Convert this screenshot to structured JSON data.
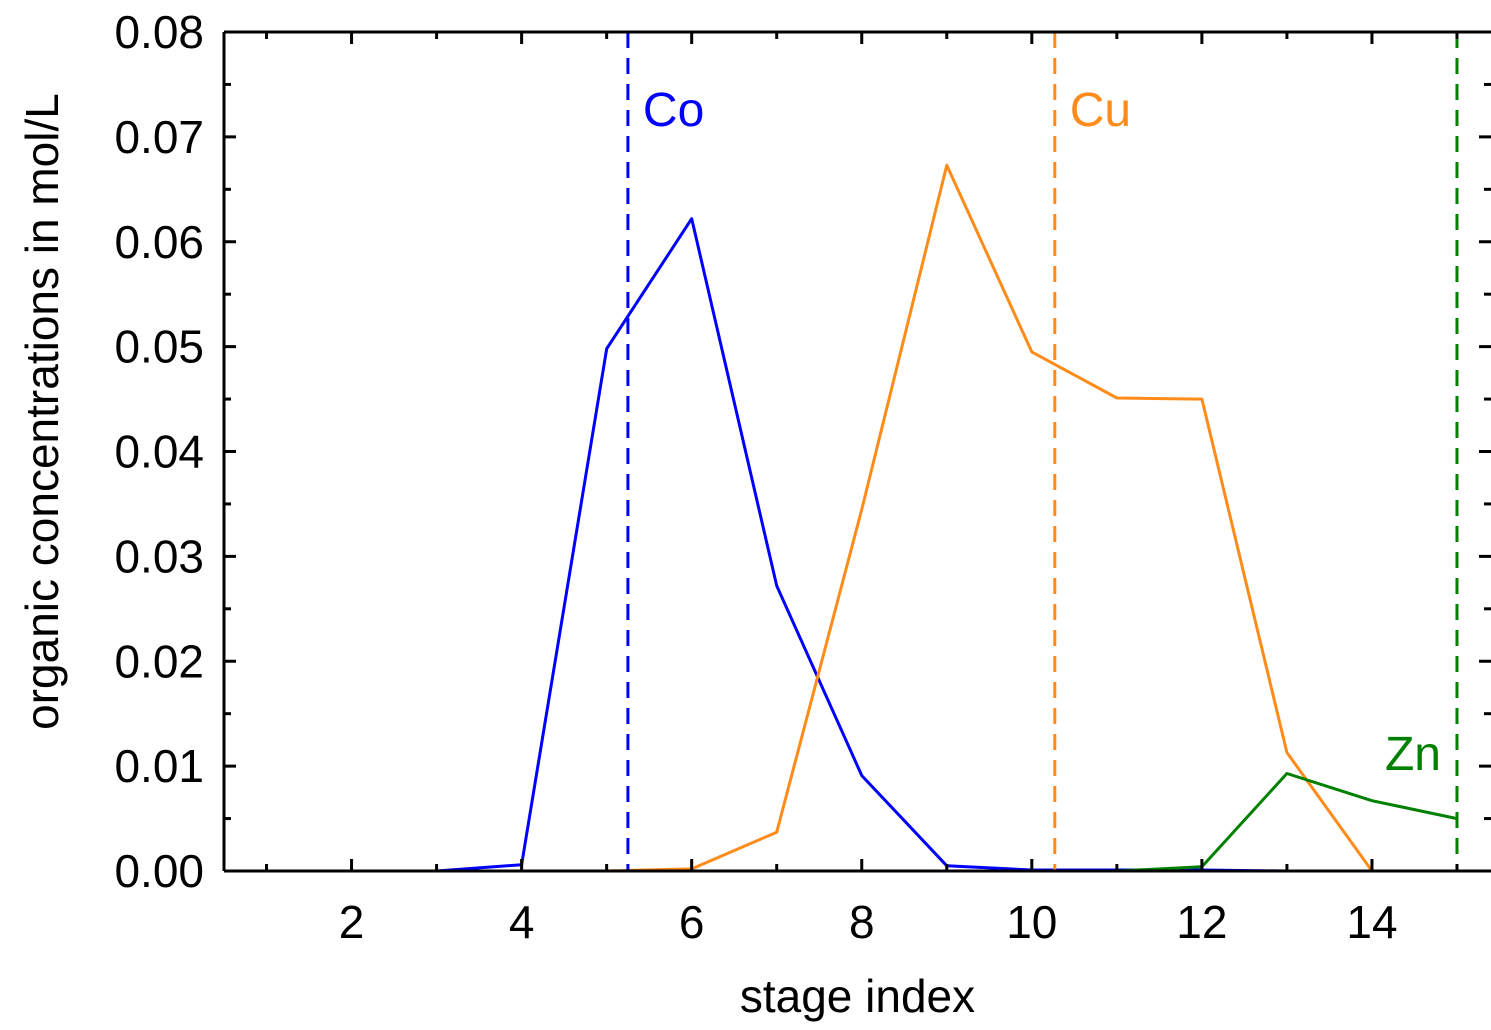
{
  "chart_data": {
    "type": "line",
    "xlabel": "stage index",
    "ylabel": "organic concentrations in mol/L",
    "xlim": [
      0.5,
      15.4
    ],
    "ylim": [
      0,
      0.08
    ],
    "x_ticks": [
      2,
      4,
      6,
      8,
      10,
      12,
      14
    ],
    "y_ticks": [
      0.0,
      0.01,
      0.02,
      0.03,
      0.04,
      0.05,
      0.06,
      0.07,
      0.08
    ],
    "x_tick_labels": [
      "2",
      "4",
      "6",
      "8",
      "10",
      "12",
      "14"
    ],
    "y_tick_labels": [
      "0.00",
      "0.01",
      "0.02",
      "0.03",
      "0.04",
      "0.05",
      "0.06",
      "0.07",
      "0.08"
    ],
    "grid": false,
    "legend": "none",
    "series": [
      {
        "name": "Co",
        "color": "#0000ff",
        "x": [
          1,
          2,
          3,
          4,
          5,
          6,
          7,
          8,
          9,
          10,
          11,
          12,
          13,
          14,
          15
        ],
        "y": [
          0.0,
          0.0,
          0.0,
          0.0006,
          0.0498,
          0.0622,
          0.0272,
          0.0091,
          0.0005,
          0.0001,
          0.0001,
          0.0001,
          0.0,
          0.0,
          0.0
        ]
      },
      {
        "name": "Cu",
        "color": "#ff8c1a",
        "x": [
          1,
          2,
          3,
          4,
          5,
          6,
          7,
          8,
          9,
          10,
          11,
          12,
          13,
          14,
          15
        ],
        "y": [
          0.0,
          0.0,
          0.0,
          0.0,
          0.0,
          0.0002,
          0.0037,
          0.0345,
          0.0673,
          0.0495,
          0.0451,
          0.045,
          0.0113,
          0.0,
          0.0
        ]
      },
      {
        "name": "Zn",
        "color": "#008000",
        "x": [
          1,
          2,
          3,
          4,
          5,
          6,
          7,
          8,
          9,
          10,
          11,
          12,
          13,
          14,
          15
        ],
        "y": [
          0.0,
          0.0,
          0.0,
          0.0,
          0.0,
          0.0,
          0.0,
          0.0,
          0.0,
          0.0,
          0.0,
          0.0004,
          0.0093,
          0.0067,
          0.005
        ]
      }
    ],
    "vertical_markers": [
      {
        "label": "Co",
        "x": 5.25,
        "color": "#0000ff",
        "style": "dashed"
      },
      {
        "label": "Cu",
        "x": 10.27,
        "color": "#ff8c1a",
        "style": "dashed"
      },
      {
        "label": "Zn",
        "x": 15.0,
        "color": "#008000",
        "style": "dashed"
      }
    ]
  }
}
